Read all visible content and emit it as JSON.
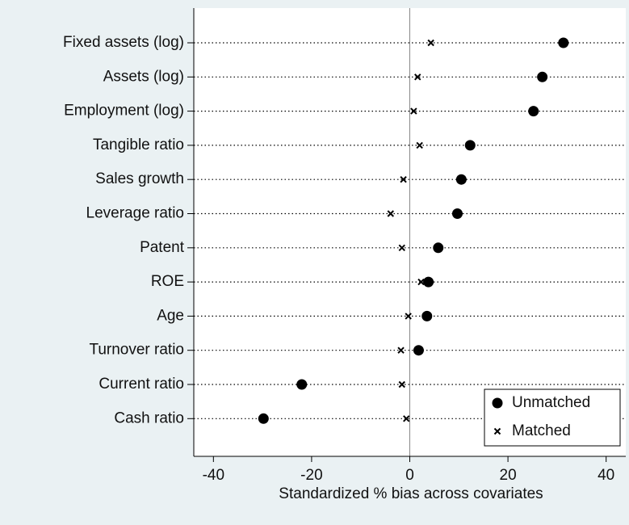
{
  "chart_data": {
    "type": "dot",
    "xlabel": "Standardized % bias across covariates",
    "categories": [
      "Fixed assets (log)",
      "Assets (log)",
      "Employment (log)",
      "Tangible ratio",
      "Sales growth",
      "Leverage ratio",
      "Patent",
      "ROE",
      "Age",
      "Turnover ratio",
      "Current ratio",
      "Cash ratio"
    ],
    "series": [
      {
        "name": "Unmatched",
        "color": "#000000",
        "marker": "circle",
        "values": [
          31.3,
          27.0,
          25.2,
          12.3,
          10.5,
          9.7,
          5.8,
          3.8,
          3.5,
          1.8,
          -22.0,
          -29.8
        ]
      },
      {
        "name": "Matched",
        "color": "#000000",
        "marker": "x",
        "values": [
          4.3,
          1.6,
          0.8,
          2.0,
          -1.3,
          -3.9,
          -1.6,
          2.3,
          -0.3,
          -1.8,
          -1.6,
          -0.7
        ]
      }
    ],
    "xlim": [
      -44,
      44
    ],
    "xticks": [
      -40,
      -20,
      0,
      20,
      40
    ],
    "grid": true,
    "legend": "lower right"
  }
}
